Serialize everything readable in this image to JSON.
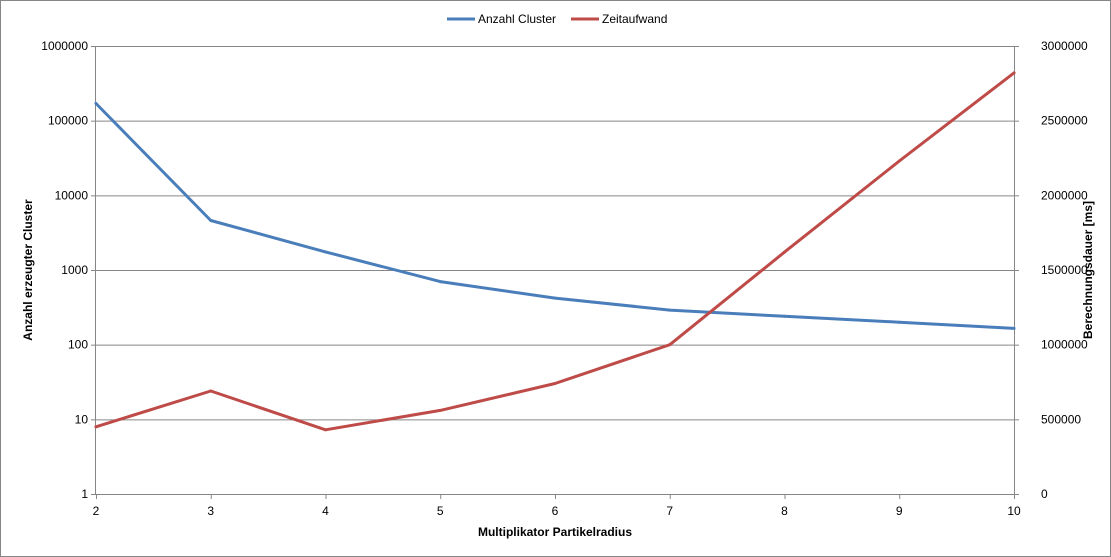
{
  "chart_data": {
    "type": "line",
    "xlabel": "Multiplikator  Partikelradius",
    "ylabel": "Anzahl erzeugter Cluster",
    "y2label": "Berechnungsdauer [ms]",
    "x": [
      2,
      3,
      4,
      5,
      6,
      7,
      8,
      9,
      10
    ],
    "x_ticks": [
      "2",
      "3",
      "4",
      "5",
      "6",
      "7",
      "8",
      "9",
      "10"
    ],
    "xlim": [
      2,
      10
    ],
    "ylim": [
      1,
      1000000
    ],
    "y_scale": "log",
    "y_ticks": [
      "1",
      "10",
      "100",
      "1000",
      "10000",
      "100000",
      "1000000"
    ],
    "y2lim": [
      0,
      3000000
    ],
    "y2_ticks": [
      "0",
      "500000",
      "1000000",
      "1500000",
      "2000000",
      "2500000",
      "3000000"
    ],
    "grid": "horizontal",
    "legend_position": "top",
    "series": [
      {
        "name": "Anzahl Cluster",
        "axis": "left",
        "color": "#4a7ebb",
        "values": [
          170000,
          4600,
          1750,
          700,
          420,
          290,
          240,
          200,
          165
        ]
      },
      {
        "name": "Zeitaufwand",
        "axis": "right",
        "color": "#be4b48",
        "values": [
          450000,
          690000,
          430000,
          560000,
          740000,
          1000000,
          1620000,
          2230000,
          2820000
        ]
      }
    ]
  }
}
